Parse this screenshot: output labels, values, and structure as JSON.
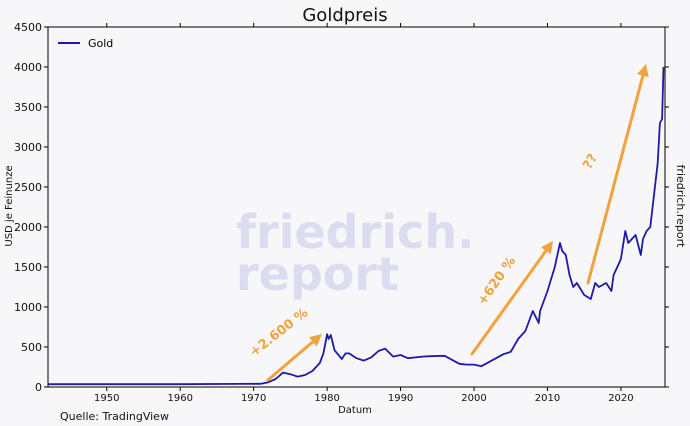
{
  "chart_data": {
    "type": "line",
    "title": "Goldpreis",
    "xlabel": "Datum",
    "ylabel": "USD je Feinunze",
    "xlim": [
      1942,
      2026
    ],
    "ylim": [
      0,
      4500
    ],
    "x_ticks": [
      1950,
      1960,
      1970,
      1980,
      1990,
      2000,
      2010,
      2020
    ],
    "y_ticks": [
      0,
      500,
      1000,
      1500,
      2000,
      2500,
      3000,
      3500,
      4000,
      4500
    ],
    "grid": false,
    "legend": "top-left",
    "series": [
      {
        "name": "Gold",
        "color": "#1f1aa6",
        "x": [
          1942,
          1950,
          1960,
          1968,
          1971,
          1972,
          1973,
          1974,
          1975,
          1976,
          1977,
          1978,
          1979,
          1979.5,
          1980,
          1980.2,
          1980.5,
          1981,
          1982,
          1982.5,
          1983,
          1984,
          1985,
          1986,
          1987,
          1987.9,
          1989,
          1990,
          1991,
          1993,
          1994,
          1996,
          1997,
          1998,
          1999,
          2000,
          2001,
          2002,
          2003,
          2004,
          2005,
          2006,
          2007,
          2008,
          2008.8,
          2009,
          2010,
          2011,
          2011.7,
          2012,
          2012.5,
          2013,
          2013.5,
          2014,
          2015,
          2015.9,
          2016.5,
          2017,
          2018,
          2018.7,
          2019,
          2019.5,
          2020,
          2020.6,
          2021,
          2021.5,
          2022,
          2022.7,
          2023,
          2023.5,
          2024,
          2024.5,
          2025,
          2025.3,
          2025.6,
          2025.8
        ],
        "values": [
          35,
          35,
          35,
          39,
          40,
          60,
          100,
          180,
          160,
          130,
          150,
          200,
          300,
          420,
          660,
          600,
          650,
          460,
          350,
          420,
          420,
          360,
          330,
          370,
          450,
          480,
          380,
          400,
          360,
          380,
          385,
          390,
          340,
          290,
          280,
          280,
          260,
          310,
          360,
          410,
          440,
          600,
          700,
          950,
          800,
          950,
          1200,
          1500,
          1800,
          1700,
          1650,
          1400,
          1250,
          1300,
          1150,
          1100,
          1300,
          1250,
          1300,
          1200,
          1400,
          1500,
          1600,
          1950,
          1800,
          1850,
          1900,
          1650,
          1850,
          1950,
          2000,
          2400,
          2800,
          3300,
          3350,
          4000
        ]
      }
    ],
    "annotations": [
      {
        "text": "+2.600 %",
        "color": "#f0a23c"
      },
      {
        "text": "+620 %",
        "color": "#f0a23c"
      },
      {
        "text": "??",
        "color": "#f0a23c"
      }
    ],
    "watermark": "friedrich. report",
    "side_label": "friedrich.report",
    "source": "Quelle: TradingView"
  }
}
